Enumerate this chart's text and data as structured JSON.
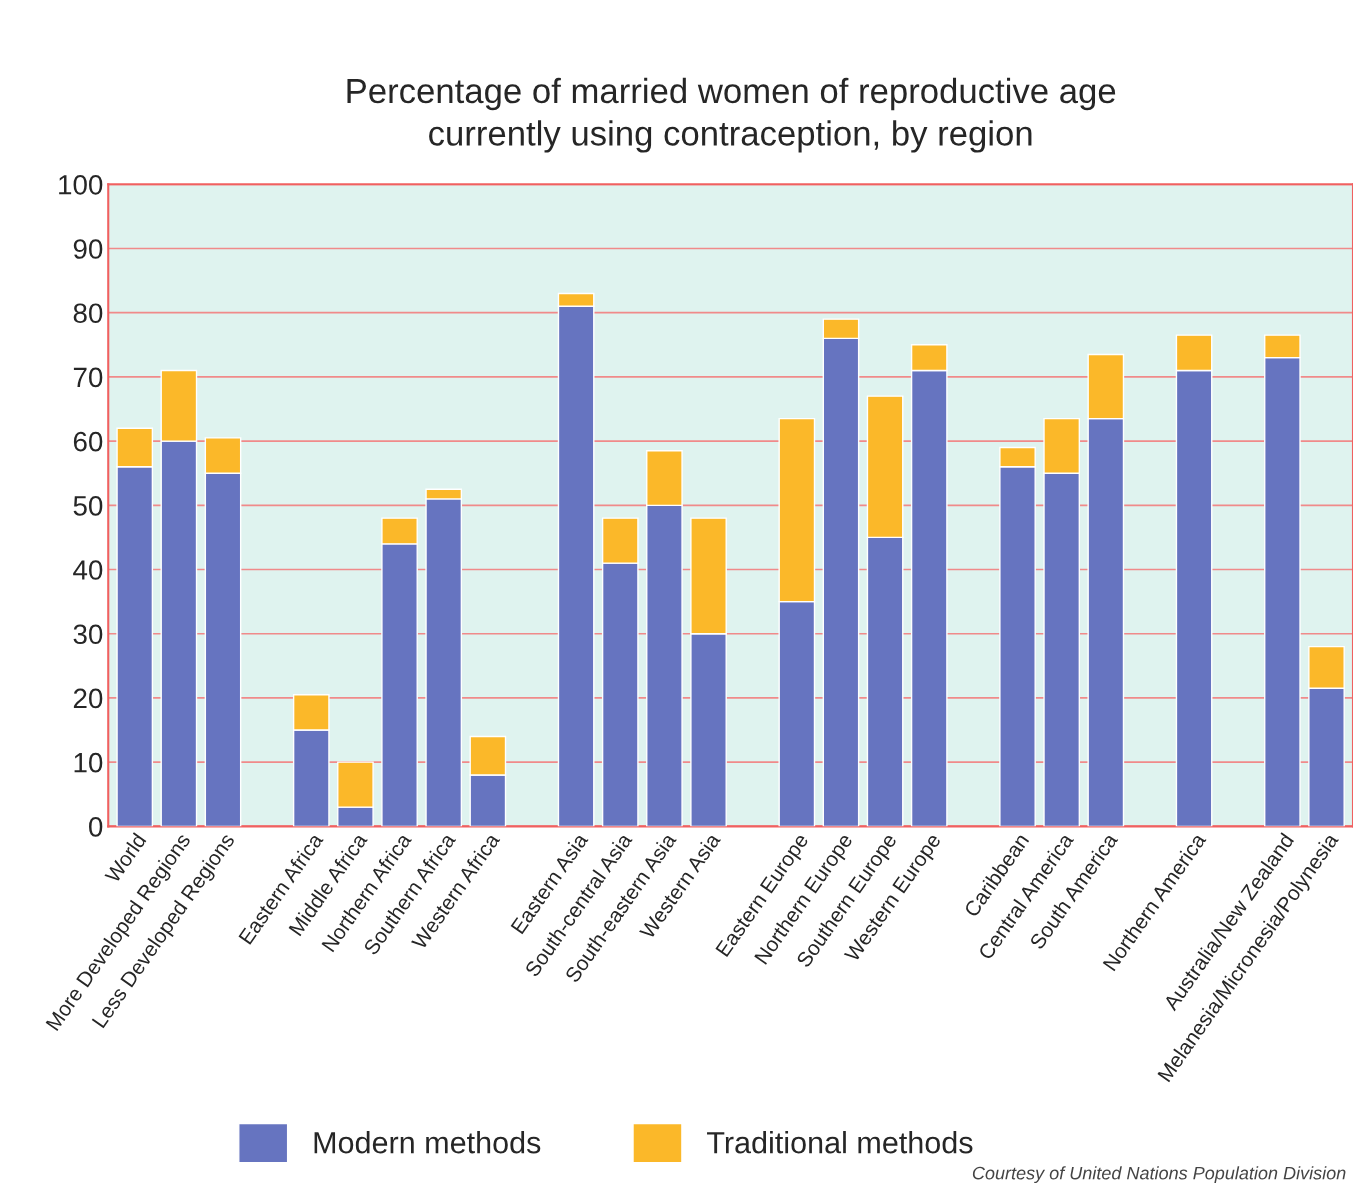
{
  "chart_data": {
    "type": "bar",
    "title": "Percentage of married women of reproductive age\ncurrently using contraception, by region",
    "categories": [
      "World",
      "More Developed Regions",
      "Less Developed Regions",
      null,
      "Eastern Africa",
      "Middle Africa",
      "Northern Africa",
      "Southern Africa",
      "Western Africa",
      null,
      "Eastern Asia",
      "South-central Asia",
      "South-eastern Asia",
      "Western Asia",
      null,
      "Eastern Europe",
      "Northern Europe",
      "Southern Europe",
      "Western Europe",
      null,
      "Caribbean",
      "Central America",
      "South America",
      null,
      "Northern America",
      null,
      "Australia/New Zealand",
      "Melanesia/Micronesia/Polynesia"
    ],
    "stacked": true,
    "series": [
      {
        "name": "Modern methods",
        "color": "#6674c0",
        "values": [
          56,
          60,
          55,
          null,
          15,
          3,
          44,
          51,
          8,
          null,
          81,
          41,
          50,
          30,
          null,
          35,
          76,
          45,
          71,
          null,
          56,
          55,
          63.5,
          null,
          71,
          null,
          73,
          21.5
        ]
      },
      {
        "name": "Traditional methods",
        "color": "#fbb829",
        "values": [
          6,
          11,
          5.5,
          null,
          5.5,
          7,
          4,
          1.5,
          6,
          null,
          2,
          7,
          8.5,
          18,
          null,
          28.5,
          3,
          22,
          4,
          null,
          3,
          8.5,
          10,
          null,
          5.5,
          null,
          3.5,
          6.5
        ]
      }
    ],
    "ylim": [
      0,
      100
    ],
    "yticks": [
      0,
      10,
      20,
      30,
      40,
      50,
      60,
      70,
      80,
      90,
      100
    ],
    "grid": "y",
    "legend": "bottom",
    "annotations": [
      "Courtesy of United Nations Population Division"
    ]
  }
}
